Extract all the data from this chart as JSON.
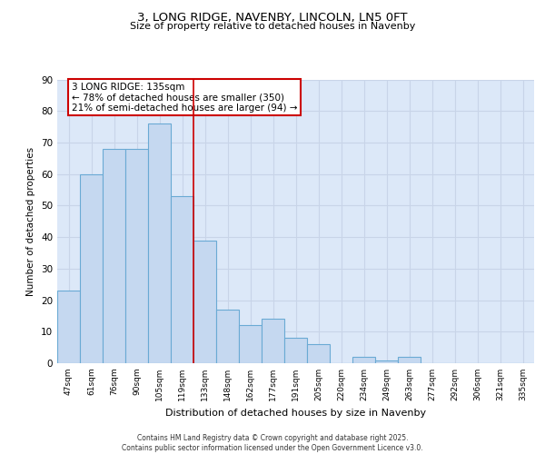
{
  "title1": "3, LONG RIDGE, NAVENBY, LINCOLN, LN5 0FT",
  "title2": "Size of property relative to detached houses in Navenby",
  "xlabel": "Distribution of detached houses by size in Navenby",
  "ylabel": "Number of detached properties",
  "categories": [
    "47sqm",
    "61sqm",
    "76sqm",
    "90sqm",
    "105sqm",
    "119sqm",
    "133sqm",
    "148sqm",
    "162sqm",
    "177sqm",
    "191sqm",
    "205sqm",
    "220sqm",
    "234sqm",
    "249sqm",
    "263sqm",
    "277sqm",
    "292sqm",
    "306sqm",
    "321sqm",
    "335sqm"
  ],
  "values": [
    23,
    60,
    68,
    68,
    76,
    53,
    39,
    17,
    12,
    14,
    8,
    6,
    0,
    2,
    1,
    2,
    0,
    0,
    0,
    0,
    0
  ],
  "bar_color": "#c5d8f0",
  "bar_edge_color": "#6aaad4",
  "vline_color": "#cc0000",
  "annotation_text": "3 LONG RIDGE: 135sqm\n← 78% of detached houses are smaller (350)\n21% of semi-detached houses are larger (94) →",
  "annotation_box_color": "#ffffff",
  "annotation_box_edge": "#cc0000",
  "ylim": [
    0,
    90
  ],
  "yticks": [
    0,
    10,
    20,
    30,
    40,
    50,
    60,
    70,
    80,
    90
  ],
  "grid_color": "#c8d4e8",
  "background_color": "#dce8f8",
  "footer": "Contains HM Land Registry data © Crown copyright and database right 2025.\nContains public sector information licensed under the Open Government Licence v3.0."
}
